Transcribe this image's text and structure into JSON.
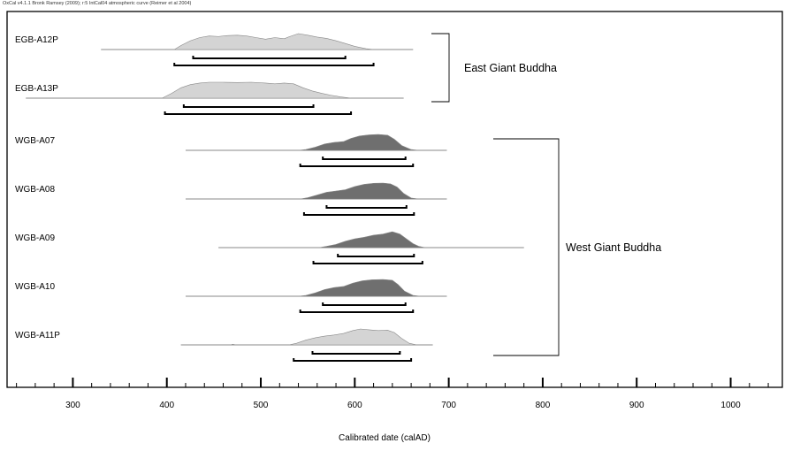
{
  "header_note": "OxCal v4.1.1 Bronk Ramsey (2009); r:5 IntCal04 atmospheric curve (Reimer et al 2004)",
  "chart_data": {
    "type": "area",
    "title": "",
    "xlabel": "Calibrated date (calAD)",
    "ylabel": "",
    "xlim": [
      230,
      1055
    ],
    "x_ticks": [
      300,
      400,
      500,
      600,
      700,
      800,
      900,
      1000
    ],
    "x_minor_step": 20,
    "grid": false,
    "legend": "none",
    "colors": {
      "east_fill": "#d4d4d4",
      "west_fill": "#6f6f6f",
      "west_light_fill": "#d4d4d4",
      "line": "#000000",
      "baseline": "#8a8a8a"
    },
    "groups": [
      {
        "label": "East Giant Buddha",
        "members": [
          "EGB-A12P",
          "EGB-A13P"
        ]
      },
      {
        "label": "West Giant Buddha",
        "members": [
          "WGB-A07",
          "WGB-A08",
          "WGB-A09",
          "WGB-A10",
          "WGB-A11P"
        ]
      }
    ],
    "series": [
      {
        "name": "EGB-A12P",
        "fill": "east_fill",
        "range": [
          330,
          662
        ],
        "range_68": [
          428,
          590
        ],
        "range_95": [
          408,
          620
        ],
        "density": [
          [
            330,
            0
          ],
          [
            408,
            0
          ],
          [
            415,
            0.25
          ],
          [
            425,
            0.55
          ],
          [
            435,
            0.75
          ],
          [
            445,
            0.85
          ],
          [
            455,
            0.82
          ],
          [
            465,
            0.88
          ],
          [
            475,
            0.9
          ],
          [
            485,
            0.85
          ],
          [
            495,
            0.75
          ],
          [
            505,
            0.65
          ],
          [
            515,
            0.75
          ],
          [
            525,
            0.68
          ],
          [
            530,
            0.8
          ],
          [
            540,
            1.0
          ],
          [
            550,
            0.9
          ],
          [
            560,
            0.78
          ],
          [
            570,
            0.7
          ],
          [
            580,
            0.55
          ],
          [
            590,
            0.38
          ],
          [
            600,
            0.2
          ],
          [
            612,
            0.05
          ],
          [
            620,
            0
          ],
          [
            662,
            0
          ]
        ]
      },
      {
        "name": "EGB-A13P",
        "fill": "east_fill",
        "range": [
          250,
          652
        ],
        "range_68": [
          418,
          556
        ],
        "range_95": [
          398,
          596
        ],
        "density": [
          [
            250,
            0
          ],
          [
            395,
            0
          ],
          [
            405,
            0.3
          ],
          [
            415,
            0.65
          ],
          [
            425,
            0.85
          ],
          [
            435,
            0.95
          ],
          [
            445,
            1.0
          ],
          [
            460,
            1.0
          ],
          [
            475,
            0.98
          ],
          [
            490,
            1.0
          ],
          [
            505,
            0.95
          ],
          [
            515,
            0.9
          ],
          [
            525,
            0.95
          ],
          [
            535,
            0.9
          ],
          [
            545,
            0.65
          ],
          [
            555,
            0.45
          ],
          [
            565,
            0.3
          ],
          [
            575,
            0.18
          ],
          [
            585,
            0.08
          ],
          [
            596,
            0
          ],
          [
            652,
            0
          ]
        ]
      },
      {
        "name": "WGB-A07",
        "fill": "west_fill",
        "range": [
          420,
          698
        ],
        "range_68": [
          566,
          654
        ],
        "range_95": [
          542,
          662
        ],
        "density": [
          [
            420,
            0
          ],
          [
            540,
            0
          ],
          [
            548,
            0.05
          ],
          [
            558,
            0.2
          ],
          [
            568,
            0.4
          ],
          [
            578,
            0.5
          ],
          [
            588,
            0.55
          ],
          [
            596,
            0.75
          ],
          [
            605,
            0.9
          ],
          [
            615,
            0.97
          ],
          [
            625,
            1.0
          ],
          [
            635,
            0.95
          ],
          [
            642,
            0.7
          ],
          [
            650,
            0.3
          ],
          [
            660,
            0.05
          ],
          [
            668,
            0
          ],
          [
            698,
            0
          ]
        ]
      },
      {
        "name": "WGB-A08",
        "fill": "west_fill",
        "range": [
          420,
          698
        ],
        "range_68": [
          570,
          655
        ],
        "range_95": [
          546,
          663
        ],
        "density": [
          [
            420,
            0
          ],
          [
            542,
            0
          ],
          [
            550,
            0.08
          ],
          [
            560,
            0.25
          ],
          [
            570,
            0.42
          ],
          [
            580,
            0.5
          ],
          [
            590,
            0.58
          ],
          [
            600,
            0.78
          ],
          [
            610,
            0.92
          ],
          [
            620,
            0.98
          ],
          [
            630,
            1.0
          ],
          [
            638,
            0.95
          ],
          [
            645,
            0.75
          ],
          [
            652,
            0.35
          ],
          [
            660,
            0.06
          ],
          [
            668,
            0
          ],
          [
            698,
            0
          ]
        ]
      },
      {
        "name": "WGB-A09",
        "fill": "west_fill",
        "range": [
          455,
          780
        ],
        "range_68": [
          582,
          663
        ],
        "range_95": [
          556,
          672
        ],
        "density": [
          [
            455,
            0
          ],
          [
            562,
            0
          ],
          [
            570,
            0.08
          ],
          [
            580,
            0.2
          ],
          [
            590,
            0.4
          ],
          [
            600,
            0.55
          ],
          [
            610,
            0.65
          ],
          [
            620,
            0.78
          ],
          [
            630,
            0.85
          ],
          [
            640,
            1.0
          ],
          [
            648,
            0.85
          ],
          [
            655,
            0.55
          ],
          [
            662,
            0.25
          ],
          [
            668,
            0.08
          ],
          [
            675,
            0
          ],
          [
            780,
            0
          ]
        ]
      },
      {
        "name": "WGB-A10",
        "fill": "west_fill",
        "range": [
          420,
          698
        ],
        "range_68": [
          566,
          654
        ],
        "range_95": [
          542,
          662
        ],
        "density": [
          [
            420,
            0
          ],
          [
            540,
            0
          ],
          [
            548,
            0.05
          ],
          [
            558,
            0.2
          ],
          [
            568,
            0.4
          ],
          [
            578,
            0.52
          ],
          [
            588,
            0.58
          ],
          [
            598,
            0.78
          ],
          [
            608,
            0.92
          ],
          [
            618,
            0.98
          ],
          [
            630,
            1.0
          ],
          [
            640,
            0.95
          ],
          [
            646,
            0.7
          ],
          [
            653,
            0.3
          ],
          [
            662,
            0.05
          ],
          [
            670,
            0
          ],
          [
            698,
            0
          ]
        ]
      },
      {
        "name": "WGB-A11P",
        "fill": "west_light_fill",
        "range": [
          415,
          683
        ],
        "range_68": [
          555,
          648
        ],
        "range_95": [
          535,
          660
        ],
        "density": [
          [
            415,
            0
          ],
          [
            468,
            0
          ],
          [
            470,
            0.04
          ],
          [
            474,
            0
          ],
          [
            530,
            0
          ],
          [
            538,
            0.1
          ],
          [
            548,
            0.3
          ],
          [
            558,
            0.45
          ],
          [
            568,
            0.55
          ],
          [
            578,
            0.62
          ],
          [
            588,
            0.72
          ],
          [
            598,
            0.9
          ],
          [
            606,
            1.0
          ],
          [
            615,
            0.95
          ],
          [
            625,
            0.9
          ],
          [
            635,
            0.92
          ],
          [
            642,
            0.78
          ],
          [
            650,
            0.4
          ],
          [
            658,
            0.1
          ],
          [
            666,
            0
          ],
          [
            683,
            0
          ]
        ]
      }
    ]
  }
}
